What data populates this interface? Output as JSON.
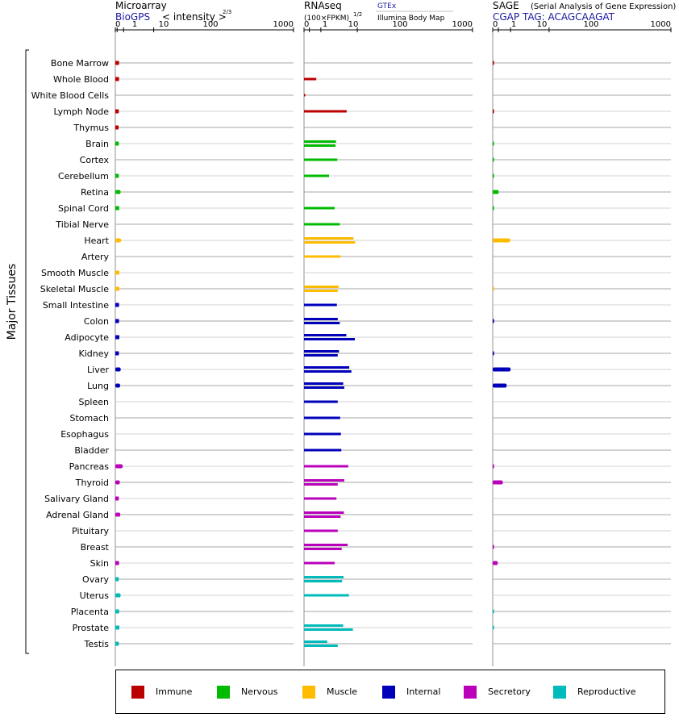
{
  "chart_data": {
    "type": "bar",
    "orientation": "horizontal",
    "y_axis_title": "Major Tissues",
    "categories": [
      "Bone Marrow",
      "Whole Blood",
      "White Blood Cells",
      "Lymph Node",
      "Thymus",
      "Brain",
      "Cortex",
      "Cerebellum",
      "Retina",
      "Spinal Cord",
      "Tibial Nerve",
      "Heart",
      "Artery",
      "Smooth Muscle",
      "Skeletal Muscle",
      "Small Intestine",
      "Colon",
      "Adipocyte",
      "Kidney",
      "Liver",
      "Lung",
      "Spleen",
      "Stomach",
      "Esophagus",
      "Bladder",
      "Pancreas",
      "Thyroid",
      "Salivary Gland",
      "Adrenal Gland",
      "Pituitary",
      "Breast",
      "Skin",
      "Ovary",
      "Uterus",
      "Placenta",
      "Prostate",
      "Testis"
    ],
    "category_group": [
      0,
      0,
      0,
      0,
      0,
      1,
      1,
      1,
      1,
      1,
      1,
      2,
      2,
      2,
      2,
      3,
      3,
      3,
      3,
      3,
      3,
      3,
      3,
      3,
      3,
      4,
      4,
      4,
      4,
      4,
      4,
      4,
      5,
      5,
      5,
      5,
      5
    ],
    "groups": [
      {
        "name": "Immune",
        "color": "#bb0000"
      },
      {
        "name": "Nervous",
        "color": "#00bb00"
      },
      {
        "name": "Muscle",
        "color": "#ffbb00"
      },
      {
        "name": "Internal",
        "color": "#0000bb"
      },
      {
        "name": "Secretory",
        "color": "#bb00bb"
      },
      {
        "name": "Reproductive",
        "color": "#00bbbb"
      }
    ],
    "panels": [
      {
        "title": "Microarray",
        "source": "BioGPS",
        "scale_label": "< intensity >",
        "scale_exp": "2/3",
        "exponent": 0.6667,
        "xlim": [
          0,
          1000
        ],
        "ticks": [
          "0",
          "1",
          "10",
          "100",
          "1000"
        ],
        "bar_style": "thick",
        "values": [
          [
            3.0
          ],
          [
            3.0
          ],
          [],
          [
            2.7
          ],
          [
            2.5
          ],
          [
            2.7
          ],
          [],
          [
            2.7
          ],
          [
            5.1
          ],
          [
            3.2
          ],
          [],
          [
            5.8
          ],
          [],
          [
            3.3
          ],
          [
            3.3
          ],
          [
            3.0
          ],
          [
            3.0
          ],
          [
            3.4
          ],
          [
            2.8
          ],
          [
            5.2
          ],
          [
            4.4
          ],
          [],
          [],
          [],
          [],
          [
            8.3
          ],
          [
            4.0
          ],
          [
            2.7
          ],
          [
            4.6
          ],
          [],
          [],
          [
            3.0
          ],
          [
            2.7
          ],
          [
            5.1
          ],
          [
            3.1
          ],
          [
            3.4
          ],
          [
            2.7
          ]
        ]
      },
      {
        "title": "RNAseq",
        "scale_label": "(100×FPKM)",
        "scale_exp": "1/2",
        "legend_primary": "GTEx",
        "legend_secondary": "Illumina Body Map",
        "exponent": 0.5,
        "xlim": [
          0,
          1000
        ],
        "ticks": [
          "0",
          "1",
          "10",
          "100",
          "1000"
        ],
        "bar_style": "thin",
        "values": [
          [],
          [
            5.3
          ],
          [
            0.02
          ],
          [
            64
          ],
          [],
          [
            36,
            35
          ],
          [
            39
          ],
          [
            22
          ],
          [],
          [
            33
          ],
          [
            45
          ],
          [
            86,
            92
          ],
          [
            47
          ],
          [],
          [
            42,
            40
          ],
          [
            38
          ],
          [
            40,
            45
          ],
          [
            63,
            91
          ],
          [
            43,
            40
          ],
          [
            72,
            79
          ],
          [
            54,
            57
          ],
          [
            40
          ],
          [
            46
          ],
          [
            48
          ],
          [
            49
          ],
          [
            69
          ],
          [
            57,
            40
          ],
          [
            37
          ],
          [
            56,
            47
          ],
          [
            40
          ],
          [
            67,
            50
          ],
          [
            33
          ],
          [
            55,
            51
          ],
          [
            71
          ],
          [],
          [
            54,
            84
          ],
          [
            19,
            40
          ]
        ]
      },
      {
        "title": "SAGE",
        "subtitle": "(Serial Analysis of Gene Expression)",
        "source": "CGAP TAG: ACAGCAAGAT",
        "exponent": 0.5,
        "xlim": [
          0,
          1000
        ],
        "ticks": [
          "0",
          "1",
          "10",
          "100",
          "1000"
        ],
        "bar_style": "thick",
        "values": [
          [
            0.02
          ],
          [],
          [],
          [
            0.01
          ],
          [],
          [
            0.01
          ],
          [
            0.01
          ],
          [
            0.01
          ],
          [
            1.1
          ],
          [
            0.01
          ],
          [],
          [
            9.5
          ],
          [],
          [],
          [
            0.005
          ],
          [],
          [
            0.02
          ],
          [],
          [
            0.02
          ],
          [
            10
          ],
          [
            6.1
          ],
          [],
          [],
          [],
          [],
          [
            0.01
          ],
          [
            3.2
          ],
          [],
          [],
          [],
          [
            0.02
          ],
          [
            0.8
          ],
          [],
          [],
          [
            0.005
          ],
          [
            0.005
          ],
          []
        ]
      }
    ]
  }
}
